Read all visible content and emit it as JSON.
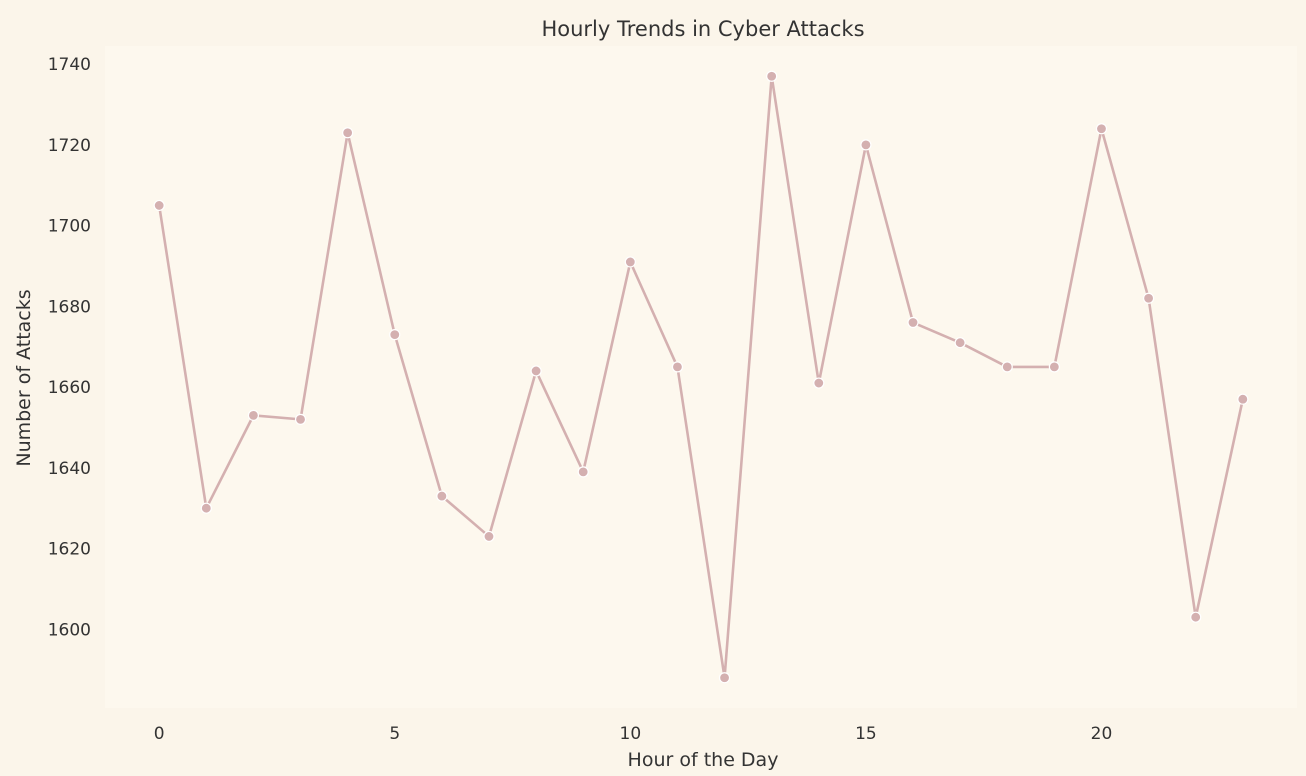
{
  "chart_data": {
    "type": "line",
    "title": "Hourly Trends in Cyber Attacks",
    "xlabel": "Hour of the Day",
    "ylabel": "Number of Attacks",
    "x": [
      0,
      1,
      2,
      3,
      4,
      5,
      6,
      7,
      8,
      9,
      10,
      11,
      12,
      13,
      14,
      15,
      16,
      17,
      18,
      19,
      20,
      21,
      22,
      23
    ],
    "series": [
      {
        "values": [
          1705,
          1630,
          1653,
          1652,
          1723,
          1673,
          1633,
          1623,
          1664,
          1639,
          1691,
          1665,
          1588,
          1737,
          1661,
          1720,
          1676,
          1671,
          1665,
          1665,
          1724,
          1682,
          1603,
          1657
        ],
        "color": "#d4b0b0"
      }
    ],
    "xticks": [
      "0",
      "5",
      "10",
      "15",
      "20"
    ],
    "xtick_values": [
      0,
      5,
      10,
      15,
      20
    ],
    "yticks": [
      "1600",
      "1620",
      "1640",
      "1660",
      "1680",
      "1700",
      "1720",
      "1740"
    ],
    "ytick_values": [
      1600,
      1620,
      1640,
      1660,
      1680,
      1700,
      1720,
      1740
    ],
    "xlim": [
      -1.15,
      24.15
    ],
    "ylim": [
      1580.5,
      1744.5
    ],
    "grid": false,
    "background_color": "#fdf8ee",
    "figure_color": "#fbf5ea"
  }
}
